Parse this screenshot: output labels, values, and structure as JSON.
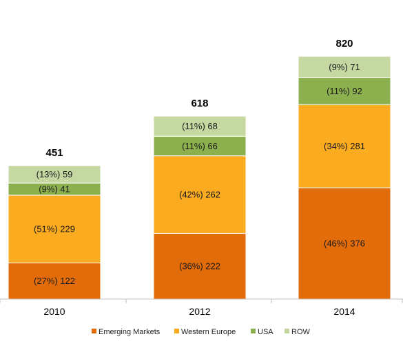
{
  "chart_data": {
    "type": "bar",
    "stacked": true,
    "categories": [
      "2010",
      "2012",
      "2014"
    ],
    "totals": [
      451,
      618,
      820
    ],
    "series": [
      {
        "name": "Emerging Markets",
        "color": "#e36c0a",
        "values": [
          122,
          222,
          376
        ],
        "shares": [
          "(27%)",
          "(36%)",
          "(46%)"
        ]
      },
      {
        "name": "Western Europe",
        "color": "#fbab20",
        "values": [
          229,
          262,
          281
        ],
        "shares": [
          "(51%)",
          "(42%)",
          "(34%)"
        ]
      },
      {
        "name": "USA",
        "color": "#8db04f",
        "values": [
          41,
          66,
          92
        ],
        "shares": [
          "(9%)",
          "(11%)",
          "(11%)"
        ]
      },
      {
        "name": "ROW",
        "color": "#c5d8a2",
        "values": [
          59,
          68,
          71
        ],
        "shares": [
          "(13%)",
          "(11%)",
          "(9%)"
        ]
      }
    ],
    "ylim": [
      0,
      820
    ],
    "grid": false,
    "legend_position": "bottom",
    "axis_color": "#c0c0c0"
  }
}
